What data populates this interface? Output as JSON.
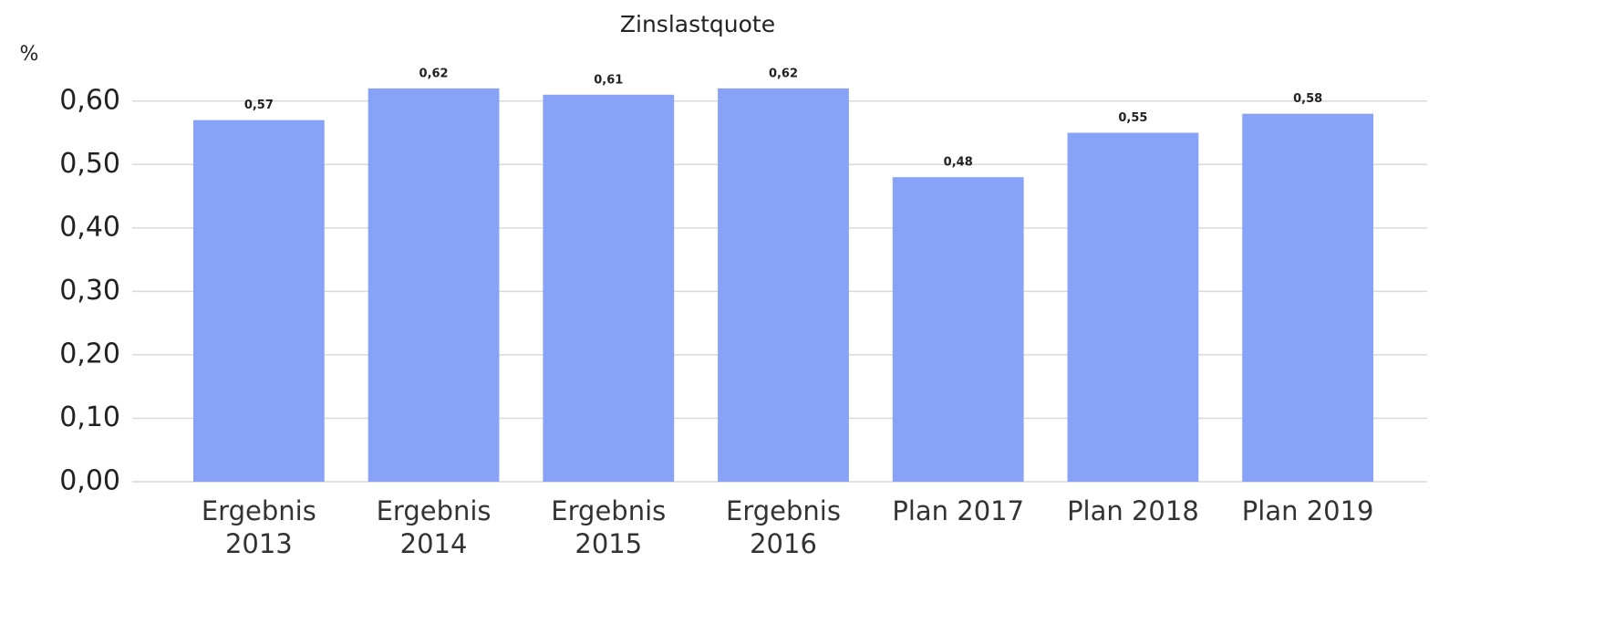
{
  "chart_data": {
    "type": "bar",
    "title": "Zinslastquote",
    "y_label": "%",
    "categories": [
      "Ergebnis 2013",
      "Ergebnis 2014",
      "Ergebnis 2015",
      "Ergebnis 2016",
      "Plan 2017",
      "Plan 2018",
      "Plan 2019"
    ],
    "values": [
      0.57,
      0.62,
      0.61,
      0.62,
      0.48,
      0.55,
      0.58
    ],
    "value_labels": [
      "0,57",
      "0,62",
      "0,61",
      "0,62",
      "0,48",
      "0,55",
      "0,58"
    ],
    "color": "#87a2f7",
    "ylim": [
      0,
      0.65
    ],
    "yticks": [
      {
        "value": 0,
        "label": "0,00"
      },
      {
        "value": 0.1,
        "label": "0,10"
      },
      {
        "value": 0.2,
        "label": "0,20"
      },
      {
        "value": 0.3,
        "label": "0,30"
      },
      {
        "value": 0.4,
        "label": "0,40"
      },
      {
        "value": 0.5,
        "label": "0,50"
      },
      {
        "value": 0.6,
        "label": "0,60"
      }
    ],
    "grid": true
  }
}
